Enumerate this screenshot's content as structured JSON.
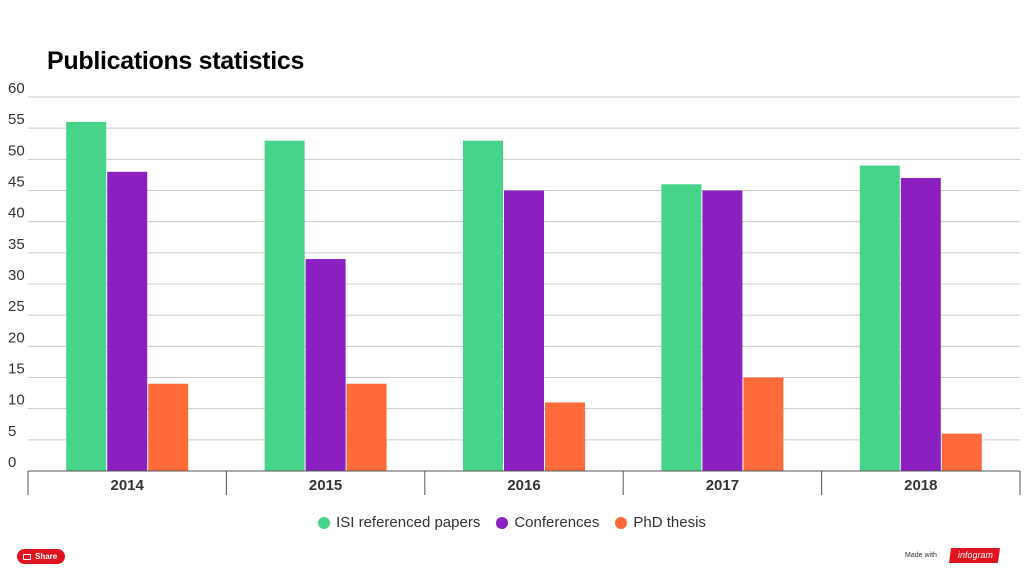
{
  "chart_data": {
    "type": "bar",
    "title": "Publications statistics",
    "categories": [
      "2014",
      "2015",
      "2016",
      "2017",
      "2018"
    ],
    "series": [
      {
        "name": "ISI referenced papers",
        "color": "#46d48a",
        "values": [
          56,
          53,
          53,
          46,
          49
        ]
      },
      {
        "name": "Conferences",
        "color": "#8b1fc0",
        "values": [
          48,
          34,
          45,
          45,
          47
        ]
      },
      {
        "name": "PhD thesis",
        "color": "#ff6a3a",
        "values": [
          14,
          14,
          11,
          15,
          6
        ]
      }
    ],
    "ylim": [
      0,
      60
    ],
    "yticks": [
      0,
      5,
      10,
      15,
      20,
      25,
      30,
      35,
      40,
      45,
      50,
      55,
      60
    ],
    "grid": true,
    "legend_position": "bottom-center"
  },
  "footer": {
    "share_label": "Share",
    "made_with": "Made with",
    "brand": "infogram"
  }
}
